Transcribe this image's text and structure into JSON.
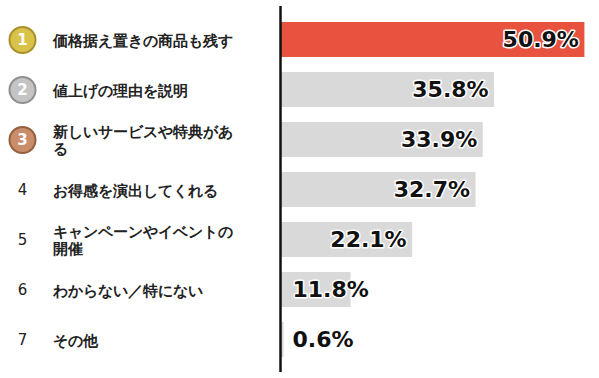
{
  "chart_data": {
    "type": "bar",
    "orientation": "horizontal",
    "ranks": [
      1,
      2,
      3,
      4,
      5,
      6,
      7
    ],
    "categories": [
      "価格据え置きの商品も残す",
      "値上げの理由を説明",
      "新しいサービスや特典があ\nる",
      "お得感を演出してくれる",
      "キャンペーンやイベントの\n開催",
      "わからない／特にない",
      "その他"
    ],
    "values": [
      50.9,
      35.8,
      33.9,
      32.7,
      22.1,
      11.8,
      0.6
    ],
    "value_labels": [
      "50.9%",
      "35.8%",
      "33.9%",
      "32.7%",
      "22.1%",
      "11.8%",
      "0.6%"
    ],
    "colors": [
      "#e8533f",
      "#d9d9d9",
      "#d9d9d9",
      "#d9d9d9",
      "#d9d9d9",
      "#d9d9d9",
      "#d9d9d9"
    ],
    "xlim": [
      0,
      51
    ],
    "data_labels": true,
    "tick_labels": false,
    "grid": false
  }
}
